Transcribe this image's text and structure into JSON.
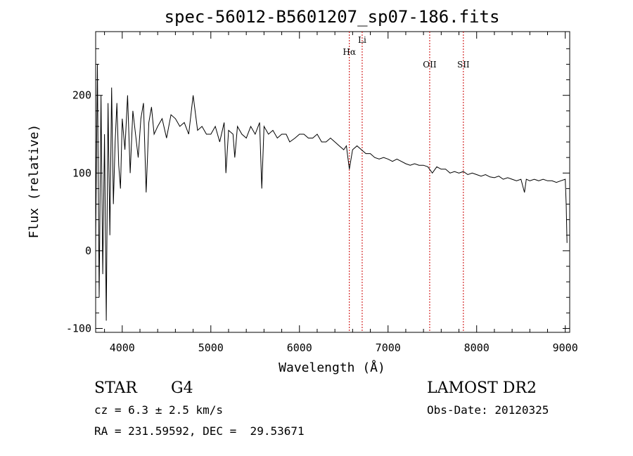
{
  "chart_data": {
    "type": "line",
    "title": "spec-56012-B5601207_sp07-186.fits",
    "xlabel": "Wavelength (Å)",
    "ylabel": "Flux (relative)",
    "xlim": [
      3700,
      9050
    ],
    "ylim": [
      -105,
      282
    ],
    "xticks": [
      4000,
      5000,
      6000,
      7000,
      8000,
      9000
    ],
    "yticks": [
      -100,
      0,
      100,
      200
    ],
    "grid": false,
    "line_color": "#000000",
    "marker_color": "#cc0000",
    "spectrum": {
      "x": [
        3700,
        3720,
        3740,
        3760,
        3780,
        3800,
        3820,
        3840,
        3860,
        3880,
        3900,
        3920,
        3940,
        3960,
        3980,
        4000,
        4030,
        4060,
        4090,
        4120,
        4150,
        4180,
        4210,
        4240,
        4270,
        4300,
        4330,
        4360,
        4400,
        4450,
        4500,
        4550,
        4600,
        4650,
        4700,
        4750,
        4800,
        4850,
        4900,
        4950,
        5000,
        5050,
        5100,
        5150,
        5170,
        5200,
        5250,
        5270,
        5300,
        5350,
        5400,
        5450,
        5500,
        5550,
        5575,
        5600,
        5650,
        5700,
        5750,
        5800,
        5850,
        5890,
        5950,
        6000,
        6050,
        6100,
        6150,
        6200,
        6250,
        6300,
        6350,
        6400,
        6450,
        6500,
        6530,
        6563,
        6600,
        6650,
        6700,
        6750,
        6800,
        6850,
        6900,
        6950,
        7000,
        7050,
        7100,
        7150,
        7200,
        7250,
        7300,
        7350,
        7400,
        7450,
        7500,
        7550,
        7600,
        7650,
        7700,
        7750,
        7800,
        7850,
        7900,
        7950,
        8000,
        8050,
        8100,
        8150,
        8200,
        8250,
        8300,
        8350,
        8400,
        8450,
        8500,
        8540,
        8560,
        8600,
        8650,
        8700,
        8750,
        8800,
        8850,
        8900,
        8950,
        9000,
        9010,
        9020
      ],
      "y": [
        10,
        240,
        -60,
        200,
        -30,
        150,
        -90,
        190,
        20,
        210,
        60,
        140,
        190,
        110,
        80,
        170,
        130,
        200,
        100,
        180,
        150,
        120,
        170,
        190,
        75,
        165,
        185,
        150,
        160,
        170,
        145,
        175,
        170,
        160,
        165,
        150,
        200,
        155,
        160,
        150,
        150,
        160,
        140,
        165,
        100,
        155,
        150,
        120,
        160,
        150,
        145,
        160,
        150,
        165,
        80,
        160,
        150,
        155,
        145,
        150,
        150,
        140,
        145,
        150,
        150,
        145,
        145,
        150,
        140,
        140,
        145,
        140,
        135,
        130,
        135,
        105,
        130,
        135,
        130,
        125,
        125,
        120,
        118,
        120,
        118,
        115,
        118,
        115,
        112,
        110,
        112,
        110,
        110,
        108,
        100,
        108,
        105,
        105,
        100,
        102,
        100,
        102,
        98,
        100,
        98,
        96,
        98,
        95,
        94,
        96,
        92,
        94,
        92,
        90,
        92,
        75,
        92,
        90,
        92,
        90,
        92,
        90,
        90,
        88,
        90,
        92,
        60,
        10
      ]
    },
    "lines": [
      {
        "label": "Hα",
        "x": 6563
      },
      {
        "label": "Li",
        "x": 6708
      },
      {
        "label": "OII",
        "x": 7470
      },
      {
        "label": "SII",
        "x": 7850
      }
    ]
  },
  "info": {
    "class": "STAR",
    "subclass": "G4",
    "survey": "LAMOST DR2",
    "cz": "cz = 6.3 ± 2.5 km/s",
    "obs_date": "Obs-Date: 20120325",
    "coords": "RA = 231.59592, DEC =  29.53671"
  }
}
